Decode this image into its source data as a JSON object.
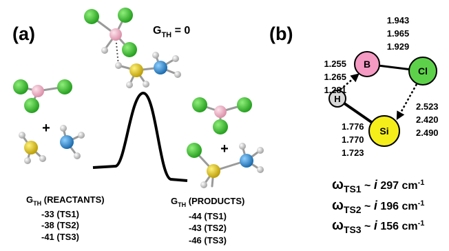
{
  "panel_a": {
    "label": "(a)",
    "transition_state": {
      "symbol": "G",
      "subscript": "TH",
      "text": "= 0"
    },
    "reactants": {
      "plus": "+",
      "symbol": "G",
      "subscript": "TH",
      "label": "(REACTANTS)",
      "energies": [
        "-33 (TS1)",
        "-38 (TS2)",
        "-41 (TS3)"
      ]
    },
    "products": {
      "plus": "+",
      "symbol": "G",
      "subscript": "TH",
      "label": "(PRODUCTS)",
      "energies": [
        "-44 (TS1)",
        "-43 (TS2)",
        "-46 (TS3)"
      ]
    }
  },
  "panel_b": {
    "label": "(b)",
    "atoms": [
      "B",
      "Cl",
      "H",
      "Si"
    ],
    "distances": {
      "b_cl": [
        "1.943",
        "1.965",
        "1.929"
      ],
      "b_h": [
        "1.255",
        "1.265",
        "1.281"
      ],
      "cl_si": [
        "2.523",
        "2.420",
        "2.490"
      ],
      "h_si": [
        "1.776",
        "1.770",
        "1.723"
      ]
    },
    "frequencies": {
      "symbol": "ω",
      "tilde": "~",
      "imaginary": "i",
      "unit": "cm",
      "exponent": "-1",
      "items": [
        {
          "state": "TS1",
          "value": "297"
        },
        {
          "state": "TS2",
          "value": "196"
        },
        {
          "state": "TS3",
          "value": "156"
        }
      ]
    }
  }
}
